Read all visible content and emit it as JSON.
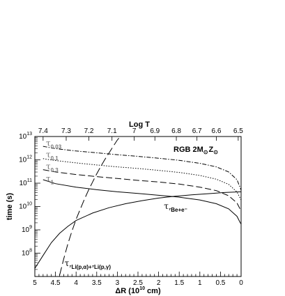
{
  "chart_data": {
    "type": "line",
    "annotation": {
      "text": "RGB 2M",
      "sub1": "⊙",
      "mid": "Z",
      "sub2": "⊙"
    },
    "xlabel": {
      "main": "ΔR (10",
      "sup": "10",
      "tail": " cm)"
    },
    "ylabel": "time (s)",
    "top_axis_label": "Log T",
    "xlim": [
      5,
      0
    ],
    "x_reversed": true,
    "ylim_log10": [
      7,
      13
    ],
    "y_log": true,
    "x_ticks": [
      {
        "v": 5,
        "label": "5"
      },
      {
        "v": 4.5,
        "label": "4.5"
      },
      {
        "v": 4,
        "label": "4"
      },
      {
        "v": 3.5,
        "label": "3.5"
      },
      {
        "v": 3,
        "label": "3"
      },
      {
        "v": 2.5,
        "label": "2.5"
      },
      {
        "v": 2,
        "label": "2"
      },
      {
        "v": 1.5,
        "label": "1.5"
      },
      {
        "v": 1,
        "label": "1"
      },
      {
        "v": 0.5,
        "label": "0.5"
      },
      {
        "v": 0,
        "label": "0"
      }
    ],
    "y_ticks": [
      {
        "exp": 8,
        "base": "10",
        "sup": "8"
      },
      {
        "exp": 9,
        "base": "10",
        "sup": "9"
      },
      {
        "exp": 10,
        "base": "10",
        "sup": "10"
      },
      {
        "exp": 11,
        "base": "10",
        "sup": "11"
      },
      {
        "exp": 12,
        "base": "10",
        "sup": "12"
      },
      {
        "exp": 13,
        "base": "10",
        "sup": "13"
      }
    ],
    "top_ticks": [
      {
        "dr": 4.8,
        "label": "7.4"
      },
      {
        "dr": 4.24,
        "label": "7.3"
      },
      {
        "dr": 3.69,
        "label": "7.2"
      },
      {
        "dr": 3.13,
        "label": "7.1"
      },
      {
        "dr": 2.59,
        "label": "7"
      },
      {
        "dr": 2.09,
        "label": "6.9"
      },
      {
        "dr": 1.57,
        "label": "6.8"
      },
      {
        "dr": 1.07,
        "label": "6.7"
      },
      {
        "dr": 0.6,
        "label": "6.6"
      },
      {
        "dr": 0.07,
        "label": "6.5"
      }
    ],
    "series": [
      {
        "key": "tau003",
        "style": "dashdot",
        "color": "#000",
        "points": [
          [
            4.8,
            12.58
          ],
          [
            4.5,
            12.48
          ],
          [
            4.0,
            12.38
          ],
          [
            3.5,
            12.3
          ],
          [
            3.0,
            12.22
          ],
          [
            2.5,
            12.15
          ],
          [
            2.0,
            12.07
          ],
          [
            1.5,
            11.98
          ],
          [
            1.0,
            11.85
          ],
          [
            0.6,
            11.7
          ],
          [
            0.3,
            11.48
          ],
          [
            0.1,
            11.15
          ],
          [
            0.02,
            10.8
          ],
          [
            0,
            10.7
          ]
        ]
      },
      {
        "key": "tau01",
        "style": "dotted",
        "color": "#000",
        "points": [
          [
            4.8,
            12.05
          ],
          [
            4.5,
            11.97
          ],
          [
            4.0,
            11.87
          ],
          [
            3.5,
            11.78
          ],
          [
            3.0,
            11.7
          ],
          [
            2.5,
            11.63
          ],
          [
            2.0,
            11.55
          ],
          [
            1.5,
            11.46
          ],
          [
            1.0,
            11.33
          ],
          [
            0.6,
            11.17
          ],
          [
            0.3,
            10.95
          ],
          [
            0.1,
            10.62
          ],
          [
            0.02,
            10.35
          ],
          [
            0,
            10.28
          ]
        ]
      },
      {
        "key": "tau03",
        "style": "dashed",
        "color": "#000",
        "points": [
          [
            4.8,
            11.58
          ],
          [
            4.5,
            11.48
          ],
          [
            4.0,
            11.37
          ],
          [
            3.5,
            11.28
          ],
          [
            3.0,
            11.2
          ],
          [
            2.5,
            11.12
          ],
          [
            2.0,
            11.05
          ],
          [
            1.5,
            10.96
          ],
          [
            1.0,
            10.83
          ],
          [
            0.6,
            10.68
          ],
          [
            0.3,
            10.46
          ],
          [
            0.1,
            10.15
          ],
          [
            0.02,
            9.88
          ],
          [
            0,
            9.8
          ]
        ]
      },
      {
        "key": "tau1",
        "style": "solid",
        "color": "#000",
        "points": [
          [
            4.8,
            11.15
          ],
          [
            4.5,
            10.98
          ],
          [
            4.0,
            10.83
          ],
          [
            3.5,
            10.72
          ],
          [
            3.0,
            10.63
          ],
          [
            2.5,
            10.56
          ],
          [
            2.0,
            10.48
          ],
          [
            1.5,
            10.4
          ],
          [
            1.0,
            10.28
          ],
          [
            0.6,
            10.12
          ],
          [
            0.3,
            9.9
          ],
          [
            0.1,
            9.58
          ],
          [
            0.02,
            9.3
          ],
          [
            0,
            9.25
          ]
        ]
      },
      {
        "key": "tauBe",
        "style": "solid",
        "color": "#000",
        "points": [
          [
            5.0,
            7.35
          ],
          [
            4.8,
            7.9
          ],
          [
            4.6,
            8.45
          ],
          [
            4.4,
            8.85
          ],
          [
            4.2,
            9.15
          ],
          [
            4.0,
            9.4
          ],
          [
            3.6,
            9.72
          ],
          [
            3.2,
            9.95
          ],
          [
            2.8,
            10.12
          ],
          [
            2.4,
            10.25
          ],
          [
            2.0,
            10.36
          ],
          [
            1.6,
            10.44
          ],
          [
            1.2,
            10.5
          ],
          [
            0.8,
            10.55
          ],
          [
            0.4,
            10.6
          ],
          [
            0,
            10.63
          ]
        ]
      },
      {
        "key": "tauLi",
        "style": "longdash",
        "color": "#000",
        "points": [
          [
            4.4,
            7.05
          ],
          [
            4.3,
            7.75
          ],
          [
            4.2,
            8.4
          ],
          [
            4.1,
            8.95
          ],
          [
            4.0,
            9.45
          ],
          [
            3.9,
            9.88
          ],
          [
            3.8,
            10.3
          ],
          [
            3.7,
            10.7
          ],
          [
            3.6,
            11.05
          ],
          [
            3.5,
            11.4
          ],
          [
            3.4,
            11.72
          ],
          [
            3.3,
            12.02
          ],
          [
            3.2,
            12.3
          ],
          [
            3.1,
            12.58
          ],
          [
            3.0,
            12.85
          ],
          [
            2.93,
            13.0
          ]
        ]
      }
    ],
    "curve_labels": [
      {
        "key": "tau003",
        "tau": "τ",
        "sub": "0.03",
        "at": [
          4.73,
          12.6
        ],
        "gray": true
      },
      {
        "key": "tau01",
        "tau": "τ",
        "sub": "0.1",
        "at": [
          4.73,
          12.1
        ],
        "gray": true
      },
      {
        "key": "tau03",
        "tau": "τ",
        "sub": "0.3",
        "at": [
          4.73,
          11.6
        ],
        "gray": true
      },
      {
        "key": "tau1",
        "tau": "τ",
        "sub": "1",
        "at": [
          4.73,
          11.08
        ],
        "gray": true
      },
      {
        "key": "tauBe",
        "tau": "τ",
        "sub": "⁷Be+e⁻",
        "at": [
          1.87,
          9.9
        ],
        "gray": false
      },
      {
        "key": "tauLi",
        "tau": "τ",
        "sub": "⁷Li(p,α)+⁷Li(p,γ)",
        "at": [
          4.28,
          7.45
        ],
        "gray": false
      }
    ]
  }
}
